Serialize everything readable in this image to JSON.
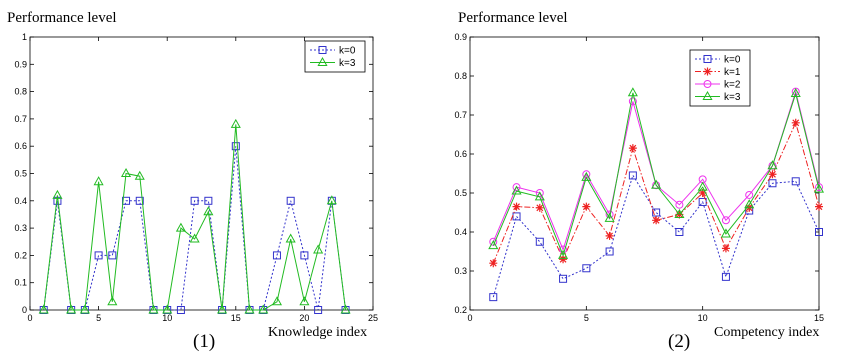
{
  "chart_data": [
    {
      "type": "line",
      "title": "",
      "ylabel": "Performance level",
      "xlabel": "Knowledge index",
      "caption": "(1)",
      "xlim": [
        0,
        25
      ],
      "ylim": [
        0,
        1
      ],
      "xticks": [
        "0",
        "5",
        "10",
        "15",
        "20",
        "25"
      ],
      "yticks": [
        "0",
        "0.1",
        "0.2",
        "0.3",
        "0.4",
        "0.5",
        "0.6",
        "0.7",
        "0.8",
        "0.9",
        "1"
      ],
      "grid": false,
      "legend_position": "top-right",
      "x": [
        1,
        2,
        3,
        4,
        5,
        6,
        7,
        8,
        9,
        10,
        11,
        12,
        13,
        14,
        15,
        16,
        17,
        18,
        19,
        20,
        21,
        22,
        23
      ],
      "series": [
        {
          "name": "k=0",
          "color": "#3333cc",
          "marker": "square",
          "dash": "dotted",
          "values": [
            0,
            0.4,
            0,
            0,
            0.2,
            0.2,
            0.4,
            0.4,
            0,
            0,
            0,
            0.4,
            0.4,
            0,
            0.6,
            0,
            0,
            0.2,
            0.4,
            0.2,
            0,
            0.4,
            0
          ]
        },
        {
          "name": "k=3",
          "color": "#22bb22",
          "marker": "triangle",
          "dash": "solid",
          "values": [
            0,
            0.42,
            0,
            0,
            0.47,
            0.03,
            0.5,
            0.49,
            0,
            0,
            0.3,
            0.26,
            0.36,
            0,
            0.68,
            0,
            0,
            0.03,
            0.26,
            0.03,
            0.22,
            0.4,
            0
          ]
        }
      ]
    },
    {
      "type": "line",
      "title": "",
      "ylabel": "Performance level",
      "xlabel": "Competency index",
      "caption": "(2)",
      "xlim": [
        0,
        15
      ],
      "ylim": [
        0.2,
        0.9
      ],
      "xticks": [
        "0",
        "5",
        "10",
        "15"
      ],
      "yticks": [
        "0.2",
        "0.3",
        "0.4",
        "0.5",
        "0.6",
        "0.7",
        "0.8",
        "0.9"
      ],
      "grid": false,
      "legend_position": "top-right",
      "x": [
        1,
        2,
        3,
        4,
        5,
        6,
        7,
        8,
        9,
        10,
        11,
        12,
        13,
        14,
        15
      ],
      "series": [
        {
          "name": "k=0",
          "color": "#3333cc",
          "marker": "square",
          "dash": "dotted",
          "values": [
            0.233,
            0.44,
            0.375,
            0.28,
            0.307,
            0.35,
            0.545,
            0.45,
            0.4,
            0.477,
            0.285,
            0.455,
            0.525,
            0.53,
            0.4
          ]
        },
        {
          "name": "k=1",
          "color": "#ee2222",
          "marker": "star",
          "dash": "dashdot",
          "values": [
            0.32,
            0.465,
            0.462,
            0.33,
            0.465,
            0.39,
            0.615,
            0.43,
            0.445,
            0.5,
            0.358,
            0.462,
            0.548,
            0.68,
            0.465
          ]
        },
        {
          "name": "k=2",
          "color": "#ee33ee",
          "marker": "circle",
          "dash": "solid",
          "values": [
            0.375,
            0.515,
            0.5,
            0.355,
            0.548,
            0.445,
            0.735,
            0.52,
            0.47,
            0.535,
            0.43,
            0.495,
            0.57,
            0.76,
            0.515
          ]
        },
        {
          "name": "k=3",
          "color": "#22bb22",
          "marker": "triangle",
          "dash": "solid",
          "values": [
            0.365,
            0.505,
            0.49,
            0.34,
            0.54,
            0.435,
            0.757,
            0.52,
            0.445,
            0.515,
            0.395,
            0.47,
            0.57,
            0.755,
            0.51
          ]
        }
      ]
    }
  ]
}
